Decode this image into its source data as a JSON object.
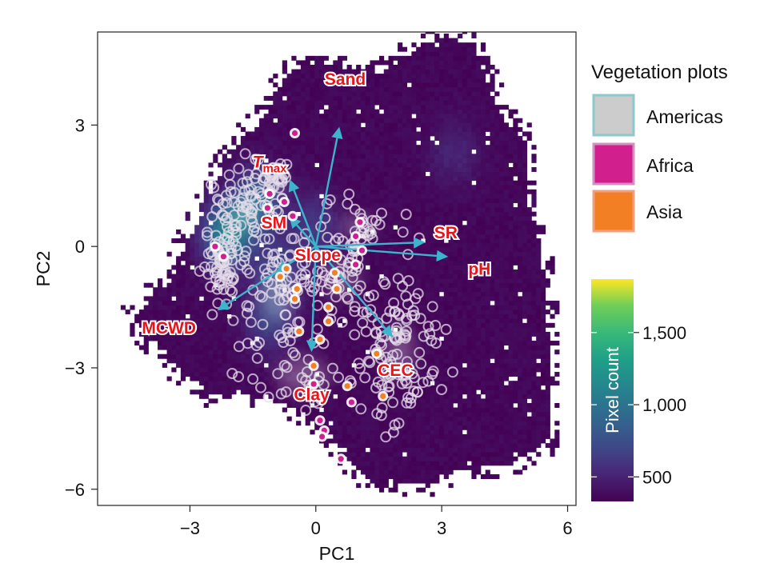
{
  "chart_data": {
    "type": "scatter",
    "subtype": "PCA biplot over pixel-density heatmap",
    "xlabel": "PC1",
    "ylabel": "PC2",
    "xlim": [
      -5.2,
      6.2
    ],
    "ylim": [
      -6.4,
      5.3
    ],
    "x_ticks": [
      -3,
      0,
      3,
      6
    ],
    "y_ticks": [
      -6,
      -3,
      0,
      3
    ],
    "x_tick_labels": [
      "−3",
      "0",
      "3",
      "6"
    ],
    "y_tick_labels": [
      "−6",
      "−3",
      "0",
      "3"
    ],
    "grid": false,
    "heatmap": {
      "name": "Pixel count",
      "colormap": "viridis",
      "range": [
        330,
        1870
      ],
      "colorbar_ticks": [
        500,
        1000,
        1500
      ],
      "colorbar_tick_labels": [
        "500",
        "1,000",
        "1,500"
      ],
      "hotspots": [
        {
          "x": -2.1,
          "y": 0.3,
          "value": 1700
        },
        {
          "x": -1.4,
          "y": 1.1,
          "value": 1300
        },
        {
          "x": -1.1,
          "y": -1.8,
          "value": 900
        },
        {
          "x": 0.0,
          "y": 0.5,
          "value": 800
        },
        {
          "x": -0.9,
          "y": -0.6,
          "value": 900
        },
        {
          "x": 3.3,
          "y": 2.3,
          "value": 600
        }
      ]
    },
    "loadings": [
      {
        "label": "Sand",
        "end": [
          0.55,
          2.9
        ],
        "label_pos": [
          0.7,
          4.0
        ]
      },
      {
        "label": "T",
        "subscript": "max",
        "end": [
          -0.6,
          1.6
        ],
        "label_pos": [
          -1.1,
          1.95
        ]
      },
      {
        "label": "SM",
        "end": [
          -0.6,
          0.7
        ],
        "label_pos": [
          -1.0,
          0.45
        ]
      },
      {
        "label": "SR",
        "end": [
          2.55,
          0.1
        ],
        "label_pos": [
          3.1,
          0.2
        ]
      },
      {
        "label": "pH",
        "end": [
          3.1,
          -0.25
        ],
        "label_pos": [
          3.9,
          -0.7
        ]
      },
      {
        "label": "Slope",
        "end": [
          -0.9,
          -0.6
        ],
        "label_pos": [
          0.05,
          -0.35
        ]
      },
      {
        "label": "MCWD",
        "end": [
          -2.3,
          -1.55
        ],
        "label_pos": [
          -3.5,
          -2.15
        ]
      },
      {
        "label": "CEC",
        "end": [
          1.8,
          -2.2
        ],
        "label_pos": [
          1.9,
          -3.2
        ]
      },
      {
        "label": "Clay",
        "end": [
          -0.1,
          -2.55
        ],
        "label_pos": [
          -0.1,
          -3.8
        ]
      }
    ],
    "series": [
      {
        "name": "Americas",
        "color": "#cccccc",
        "edge": "#8cc8cc",
        "marker": "ring",
        "clusters": [
          {
            "x": -2.2,
            "y": -0.4,
            "sx": 0.22,
            "sy": 0.6,
            "n": 70
          },
          {
            "x": -1.7,
            "y": 0.8,
            "sx": 0.35,
            "sy": 0.5,
            "n": 60
          },
          {
            "x": -1.0,
            "y": 1.6,
            "sx": 0.3,
            "sy": 0.35,
            "n": 40
          },
          {
            "x": -0.9,
            "y": -1.2,
            "sx": 0.5,
            "sy": 0.8,
            "n": 60
          },
          {
            "x": 0.6,
            "y": -0.8,
            "sx": 0.55,
            "sy": 0.6,
            "n": 60
          },
          {
            "x": 2.0,
            "y": -2.6,
            "sx": 0.45,
            "sy": 0.9,
            "n": 110
          },
          {
            "x": -0.3,
            "y": -3.2,
            "sx": 0.8,
            "sy": 0.6,
            "n": 40
          },
          {
            "x": 1.0,
            "y": 0.5,
            "sx": 0.5,
            "sy": 0.35,
            "n": 30
          }
        ]
      },
      {
        "name": "Africa",
        "color": "#d11f8e",
        "edge": "#ffffff",
        "marker": "dot",
        "points": [
          [
            -2.4,
            0.0
          ],
          [
            -2.2,
            -0.25
          ],
          [
            -1.1,
            1.3
          ],
          [
            -1.15,
            0.95
          ],
          [
            -0.75,
            1.1
          ],
          [
            -0.55,
            0.75
          ],
          [
            1.05,
            0.6
          ],
          [
            0.95,
            0.25
          ],
          [
            1.1,
            -0.1
          ],
          [
            0.95,
            -0.45
          ],
          [
            -0.5,
            2.8
          ],
          [
            0.85,
            -3.85
          ],
          [
            -0.05,
            -3.4
          ],
          [
            0.1,
            -4.3
          ],
          [
            0.2,
            -4.55
          ],
          [
            0.15,
            -4.7
          ],
          [
            0.6,
            -5.25
          ]
        ]
      },
      {
        "name": "Asia",
        "color": "#f37f24",
        "edge": "#ffffff",
        "marker": "dot",
        "points": [
          [
            -0.85,
            -0.75
          ],
          [
            -0.45,
            -1.05
          ],
          [
            -0.5,
            -1.3
          ],
          [
            0.5,
            -1.05
          ],
          [
            -0.4,
            -2.1
          ],
          [
            0.3,
            -1.5
          ],
          [
            0.3,
            -1.85
          ],
          [
            0.1,
            -2.3
          ],
          [
            -0.05,
            -2.95
          ],
          [
            1.45,
            -2.65
          ],
          [
            0.75,
            -3.45
          ],
          [
            1.6,
            -3.7
          ],
          [
            -0.7,
            -0.55
          ],
          [
            0.45,
            -0.65
          ]
        ]
      }
    ]
  },
  "legend": {
    "title": "Vegetation plots",
    "items": [
      {
        "label": "Americas",
        "fill": "#cccccc",
        "border": "#8cc8cc"
      },
      {
        "label": "Africa",
        "fill": "#d11f8e",
        "border": "#d090c0"
      },
      {
        "label": "Asia",
        "fill": "#f37f24",
        "border": "#f0a080"
      }
    ]
  },
  "colorbar": {
    "title": "Pixel count"
  },
  "colors": {
    "label_red": "#e8141c",
    "arrow": "#3bb4cc",
    "background_cell": "#440d54"
  }
}
